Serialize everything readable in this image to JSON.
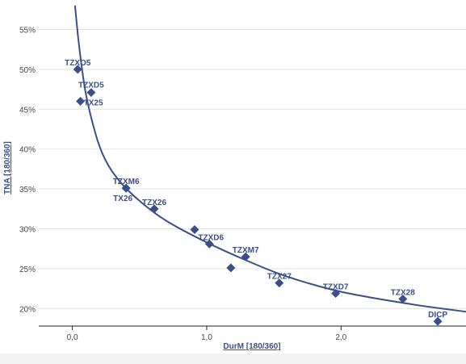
{
  "chart_data": {
    "type": "scatter",
    "xlabel": "DurM [180/360]",
    "ylabel": "TNA [180/360]",
    "xlim": [
      -0.25,
      2.93
    ],
    "ylim": [
      17.8,
      58.7
    ],
    "x_ticks": [
      0.0,
      1.0,
      2.0
    ],
    "x_tick_labels": [
      "0,0",
      "1,0",
      "2,0"
    ],
    "y_ticks": [
      20,
      25,
      30,
      35,
      40,
      45,
      50,
      55
    ],
    "y_tick_labels": [
      "20%",
      "25%",
      "30%",
      "35%",
      "40%",
      "45%",
      "50%",
      "55%"
    ],
    "grid": true,
    "legend": "none",
    "color": "#3a4f8a",
    "points": [
      {
        "label": "TZXO5",
        "x": 0.04,
        "y": 50.0
      },
      {
        "label": "TZXD5",
        "x": 0.14,
        "y": 47.1
      },
      {
        "label": "TX25",
        "x": 0.06,
        "y": 46.0
      },
      {
        "label": "TZXM6",
        "x": 0.4,
        "y": 35.1
      },
      {
        "label": "TX26",
        "x": 0.4,
        "y": 35.1
      },
      {
        "label": "TZX26",
        "x": 0.61,
        "y": 32.5
      },
      {
        "label": "",
        "x": 0.91,
        "y": 29.9
      },
      {
        "label": "TZXD6",
        "x": 1.02,
        "y": 28.1
      },
      {
        "label": "TZXM7",
        "x": 1.29,
        "y": 26.5
      },
      {
        "label": "",
        "x": 1.18,
        "y": 25.1
      },
      {
        "label": "TZX27",
        "x": 1.54,
        "y": 23.2
      },
      {
        "label": "TZXD7",
        "x": 1.96,
        "y": 21.9
      },
      {
        "label": "TZX28",
        "x": 2.46,
        "y": 21.2
      },
      {
        "label": "DICP",
        "x": 2.72,
        "y": 18.4
      }
    ],
    "trendline": [
      {
        "x": 0.02,
        "y": 58.0
      },
      {
        "x": 0.05,
        "y": 53.0
      },
      {
        "x": 0.1,
        "y": 47.0
      },
      {
        "x": 0.18,
        "y": 41.5
      },
      {
        "x": 0.25,
        "y": 38.5
      },
      {
        "x": 0.35,
        "y": 36.0
      },
      {
        "x": 0.5,
        "y": 33.5
      },
      {
        "x": 0.7,
        "y": 31.0
      },
      {
        "x": 1.0,
        "y": 28.3
      },
      {
        "x": 1.3,
        "y": 26.0
      },
      {
        "x": 1.6,
        "y": 24.0
      },
      {
        "x": 2.0,
        "y": 22.1
      },
      {
        "x": 2.5,
        "y": 20.6
      },
      {
        "x": 2.93,
        "y": 19.6
      }
    ]
  }
}
